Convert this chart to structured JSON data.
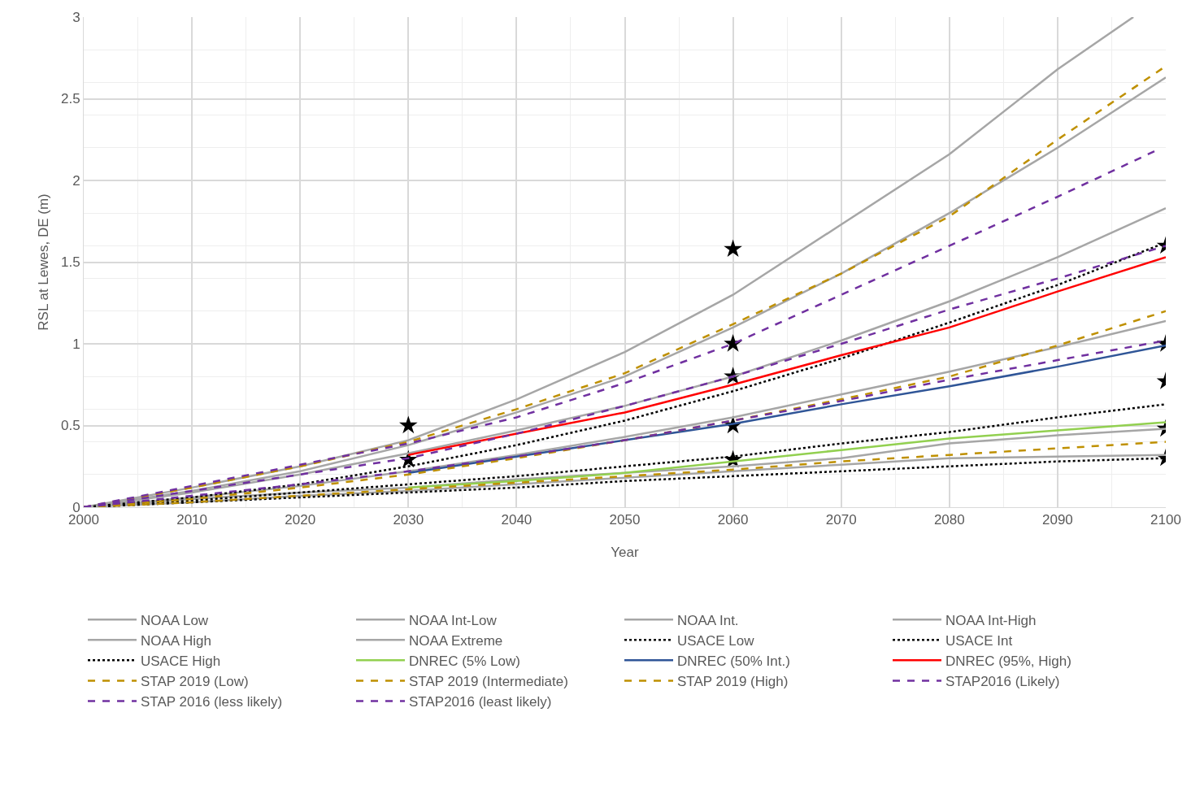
{
  "chart_data": {
    "type": "line",
    "xlabel": "Year",
    "ylabel": "RSL at Lewes, DE (m)",
    "xlim": [
      2000,
      2100
    ],
    "xticks": [
      2000,
      2010,
      2020,
      2030,
      2040,
      2050,
      2060,
      2070,
      2080,
      2090,
      2100
    ],
    "ylim": [
      0,
      3
    ],
    "yticks": [
      0,
      0.5,
      1,
      1.5,
      2,
      2.5,
      3
    ],
    "grid": true,
    "legend": "bottom",
    "x": [
      2000,
      2010,
      2020,
      2030,
      2040,
      2050,
      2060,
      2070,
      2080,
      2090,
      2100
    ],
    "series": [
      {
        "name": "NOAA Low",
        "color": "#a6a6a6",
        "line_style": "solid",
        "values": [
          0,
          0.03,
          0.07,
          0.1,
          0.14,
          0.18,
          0.22,
          0.26,
          0.3,
          0.31,
          0.32
        ]
      },
      {
        "name": "NOAA Int-Low",
        "color": "#a6a6a6",
        "line_style": "solid",
        "values": [
          0,
          0.05,
          0.09,
          0.12,
          0.17,
          0.21,
          0.25,
          0.3,
          0.39,
          0.44,
          0.48
        ]
      },
      {
        "name": "NOAA Int.",
        "color": "#a6a6a6",
        "line_style": "solid",
        "values": [
          0,
          0.06,
          0.13,
          0.22,
          0.32,
          0.43,
          0.55,
          0.69,
          0.83,
          0.98,
          1.14
        ]
      },
      {
        "name": "NOAA Int-High",
        "color": "#a6a6a6",
        "line_style": "solid",
        "values": [
          0,
          0.09,
          0.2,
          0.33,
          0.47,
          0.62,
          0.8,
          1.02,
          1.26,
          1.53,
          1.83
        ]
      },
      {
        "name": "NOAA High",
        "color": "#a6a6a6",
        "line_style": "solid",
        "values": [
          0,
          0.1,
          0.22,
          0.38,
          0.58,
          0.8,
          1.1,
          1.43,
          1.8,
          2.2,
          2.63
        ]
      },
      {
        "name": "NOAA Extreme",
        "color": "#a6a6a6",
        "line_style": "solid",
        "x": [
          2000,
          2010,
          2020,
          2030,
          2040,
          2050,
          2060,
          2070,
          2080,
          2090,
          2097
        ],
        "values": [
          0,
          0.12,
          0.25,
          0.41,
          0.66,
          0.95,
          1.3,
          1.73,
          2.16,
          2.68,
          3
        ]
      },
      {
        "name": "USACE Low",
        "color": "#000000",
        "line_style": "dotted",
        "values": [
          0,
          0.03,
          0.06,
          0.09,
          0.12,
          0.16,
          0.19,
          0.22,
          0.25,
          0.28,
          0.3
        ]
      },
      {
        "name": "USACE Int",
        "color": "#000000",
        "line_style": "dotted",
        "values": [
          0,
          0.04,
          0.09,
          0.14,
          0.19,
          0.25,
          0.31,
          0.39,
          0.46,
          0.55,
          0.63
        ]
      },
      {
        "name": "USACE High",
        "color": "#000000",
        "line_style": "dotted",
        "values": [
          0,
          0.06,
          0.14,
          0.25,
          0.38,
          0.53,
          0.71,
          0.91,
          1.13,
          1.36,
          1.62
        ]
      },
      {
        "name": "DNREC (5% Low)",
        "color": "#92d050",
        "line_style": "solid",
        "values": [
          null,
          null,
          null,
          0.12,
          0.16,
          0.21,
          0.28,
          0.35,
          0.42,
          0.47,
          0.52
        ]
      },
      {
        "name": "DNREC (50% Int.)",
        "color": "#2f5597",
        "line_style": "solid",
        "values": [
          null,
          null,
          null,
          0.21,
          0.31,
          0.41,
          0.51,
          0.63,
          0.74,
          0.86,
          0.99
        ]
      },
      {
        "name": "DNREC (95%, High)",
        "color": "#ff0000",
        "line_style": "solid",
        "values": [
          null,
          null,
          null,
          0.32,
          0.45,
          0.58,
          0.75,
          0.93,
          1.1,
          1.32,
          1.53
        ]
      },
      {
        "name": "STAP 2019 (Low)",
        "color": "#bf9000",
        "line_style": "dashed",
        "values": [
          0,
          0.03,
          0.07,
          0.11,
          0.15,
          0.19,
          0.23,
          0.28,
          0.32,
          0.36,
          0.4
        ]
      },
      {
        "name": "STAP 2019 (Intermediate)",
        "color": "#bf9000",
        "line_style": "dashed",
        "values": [
          0,
          0.05,
          0.12,
          0.2,
          0.3,
          0.41,
          0.53,
          0.66,
          0.8,
          0.99,
          1.2
        ]
      },
      {
        "name": "STAP 2019 (High)",
        "color": "#bf9000",
        "line_style": "dashed",
        "values": [
          0,
          0.12,
          0.25,
          0.4,
          0.6,
          0.82,
          1.12,
          1.43,
          1.78,
          2.25,
          2.7
        ]
      },
      {
        "name": "STAP2016 (Likely)",
        "color": "#7030a0",
        "line_style": "dashed",
        "values": [
          0,
          0.07,
          0.14,
          0.22,
          0.31,
          0.41,
          0.53,
          0.65,
          0.78,
          0.9,
          1.02
        ]
      },
      {
        "name": "STAP 2016 (less likely)",
        "color": "#7030a0",
        "line_style": "dashed",
        "values": [
          0,
          0.1,
          0.2,
          0.3,
          0.45,
          0.62,
          0.8,
          1.0,
          1.21,
          1.4,
          1.6
        ]
      },
      {
        "name": "STAP2016 (least likely)",
        "color": "#7030a0",
        "line_style": "dashed",
        "x": [
          2000,
          2010,
          2020,
          2030,
          2040,
          2050,
          2060,
          2070,
          2080,
          2090,
          2099
        ],
        "values": [
          0,
          0.13,
          0.26,
          0.39,
          0.55,
          0.76,
          1.0,
          1.3,
          1.6,
          1.9,
          2.18
        ]
      },
      {
        "type": "scatter",
        "marker": "star",
        "color": "#000000",
        "x": [
          2030,
          2030,
          2060,
          2060,
          2060,
          2060,
          2060,
          2100,
          2100,
          2100,
          2100,
          2100
        ],
        "values": [
          0.5,
          0.29,
          1.58,
          1.0,
          0.8,
          0.5,
          0.29,
          1.6,
          1.0,
          0.77,
          0.48,
          0.3
        ]
      }
    ]
  }
}
